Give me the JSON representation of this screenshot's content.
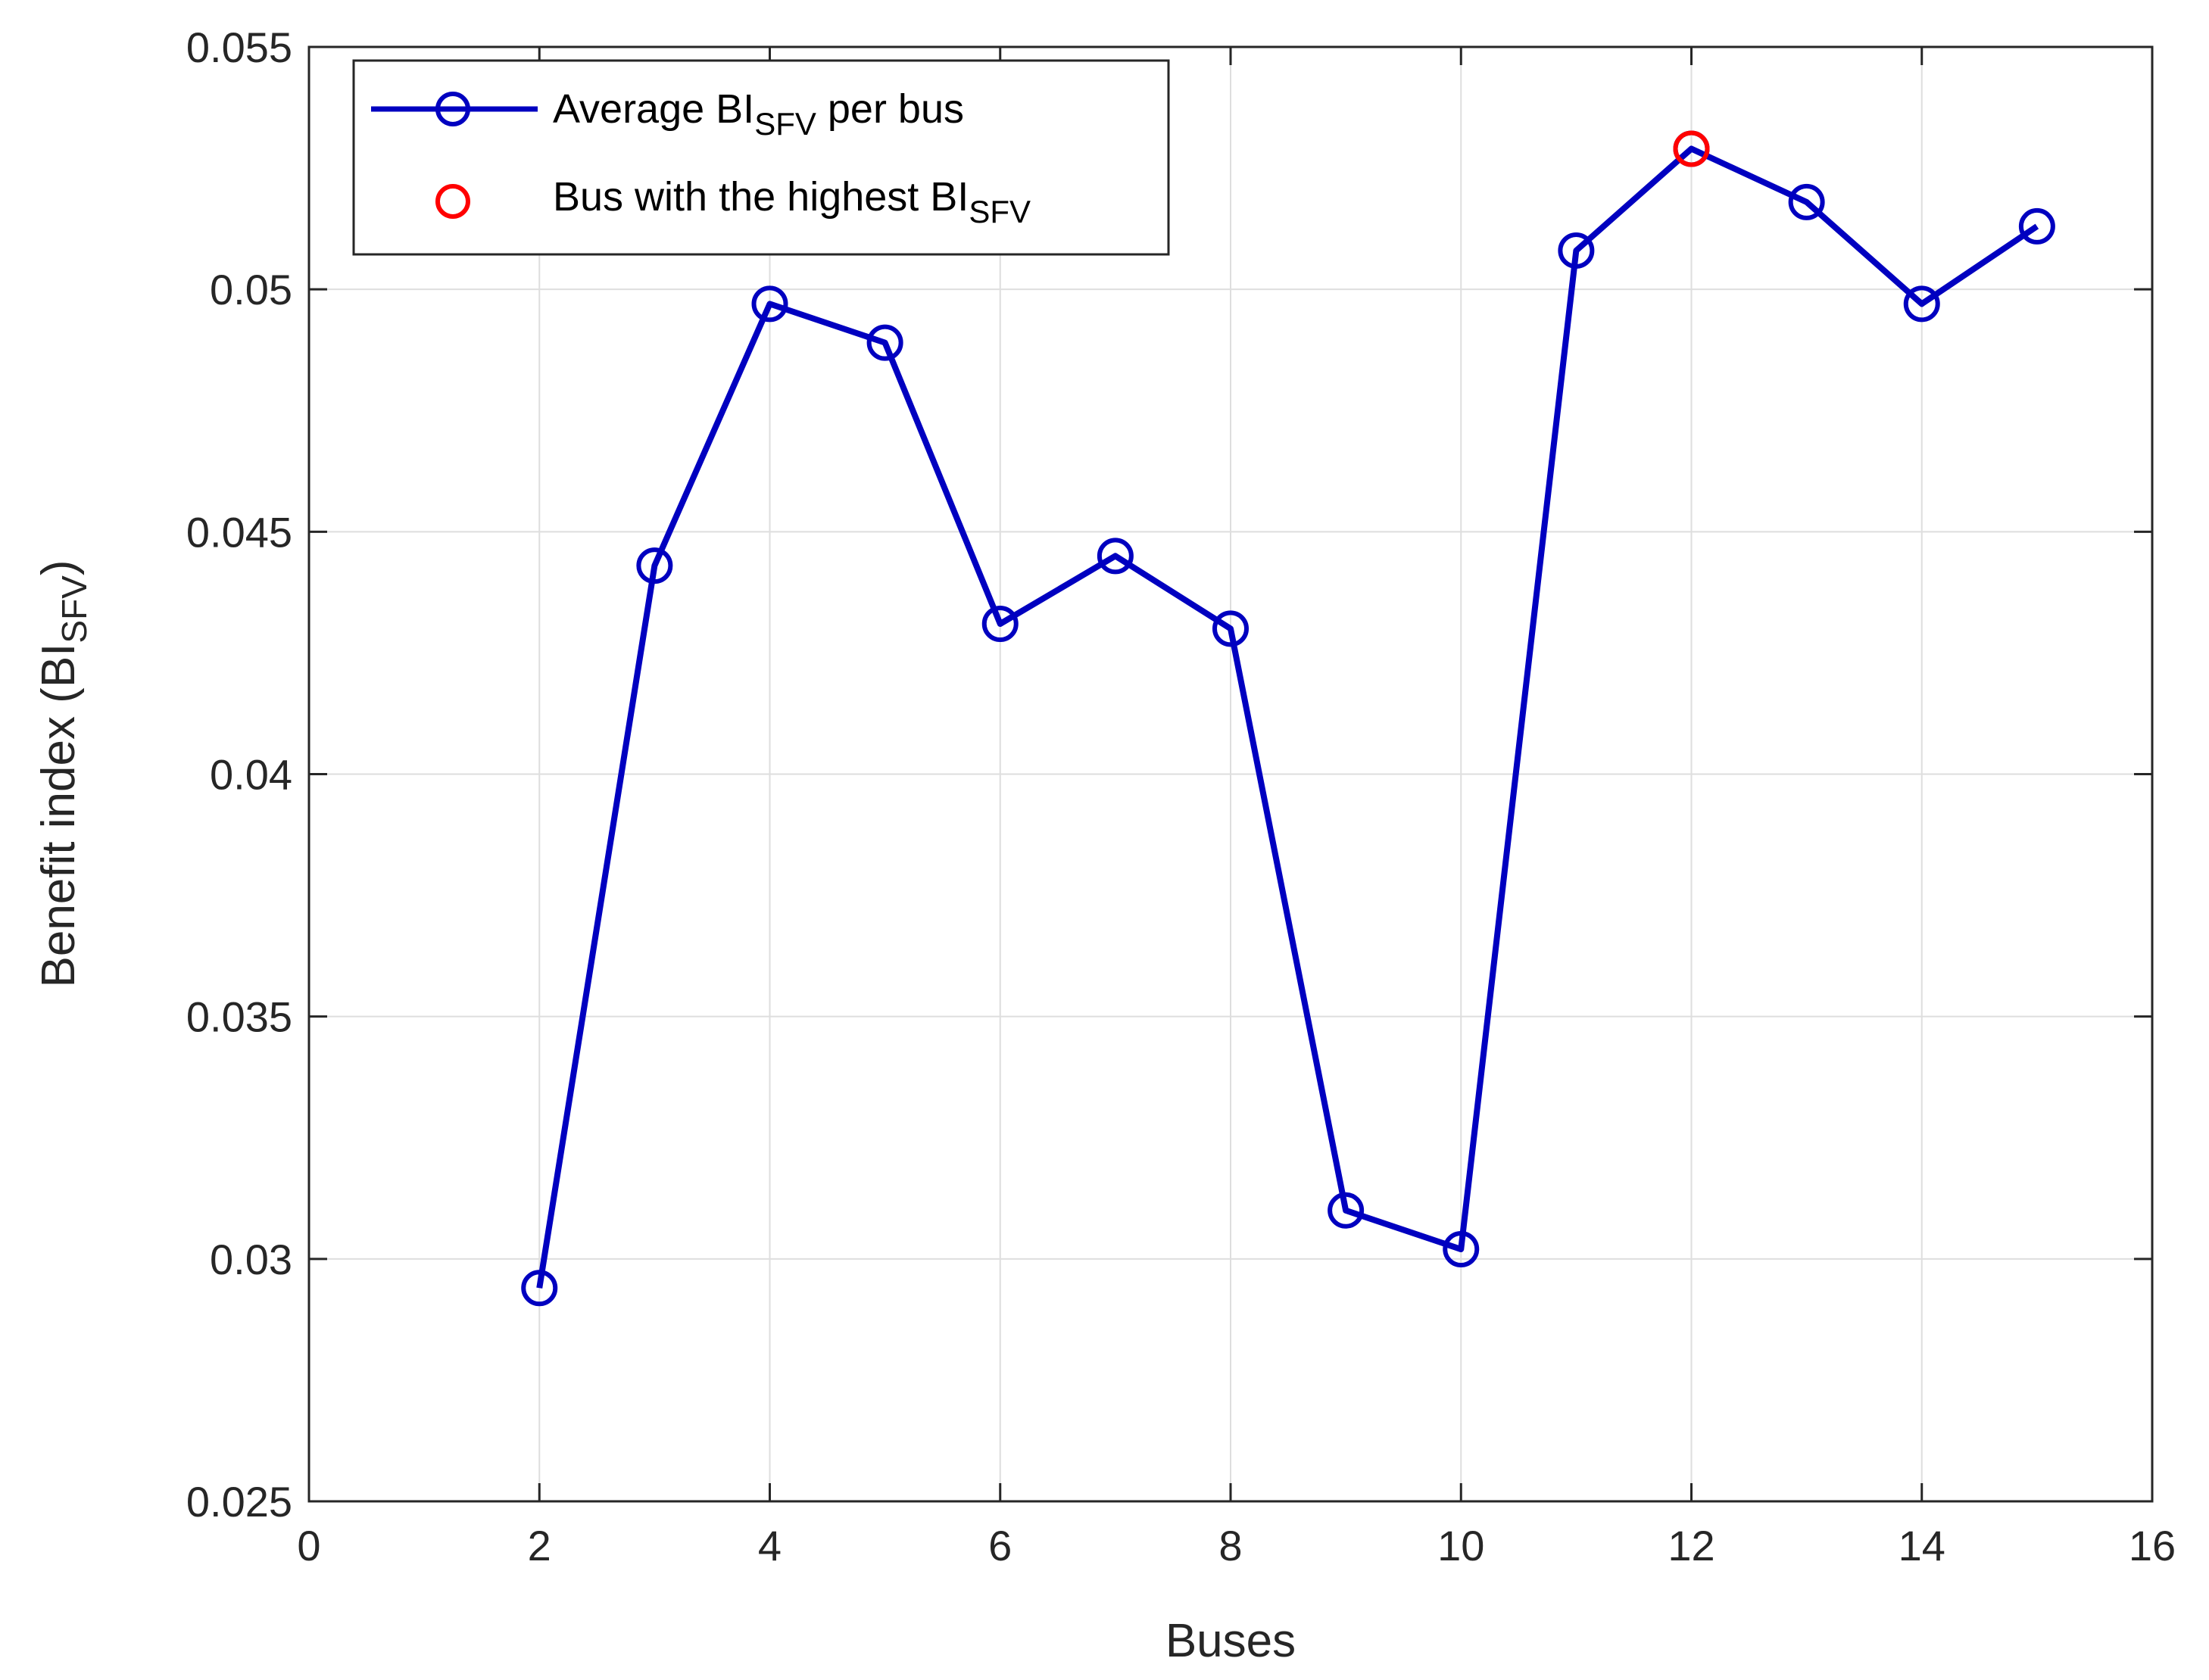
{
  "chart_data": {
    "type": "line",
    "xlabel": "Buses",
    "ylabel_main": "Benefit index (BI",
    "ylabel_sub": "SFV",
    "ylabel_close": ")",
    "xlim": [
      0,
      16
    ],
    "ylim": [
      0.025,
      0.055
    ],
    "xticks": [
      0,
      2,
      4,
      6,
      8,
      10,
      12,
      14,
      16
    ],
    "xtick_labels": [
      "0",
      "2",
      "4",
      "6",
      "8",
      "10",
      "12",
      "14",
      "16"
    ],
    "yticks": [
      0.025,
      0.03,
      0.035,
      0.04,
      0.045,
      0.05,
      0.055
    ],
    "ytick_labels": [
      "0.025",
      "0.03",
      "0.035",
      "0.04",
      "0.045",
      "0.05",
      "0.055"
    ],
    "grid": true,
    "legend_placement": "top-left",
    "series": [
      {
        "legend_main": "Average BI",
        "legend_sub": "SFV",
        "legend_after": " per bus",
        "color": "#0000c0",
        "marker": "circle-open",
        "x": [
          2,
          3,
          4,
          5,
          6,
          7,
          8,
          9,
          10,
          11,
          12,
          13,
          14,
          15
        ],
        "y": [
          0.0294,
          0.0443,
          0.0497,
          0.0489,
          0.0431,
          0.0445,
          0.043,
          0.031,
          0.0302,
          0.0508,
          0.0529,
          0.0518,
          0.0497,
          0.0513
        ]
      },
      {
        "legend_main": "Bus with the highest BI",
        "legend_sub": "SFV",
        "color": "#ff0000",
        "marker": "circle-open",
        "x": [
          12
        ],
        "y": [
          0.0529
        ]
      }
    ]
  }
}
